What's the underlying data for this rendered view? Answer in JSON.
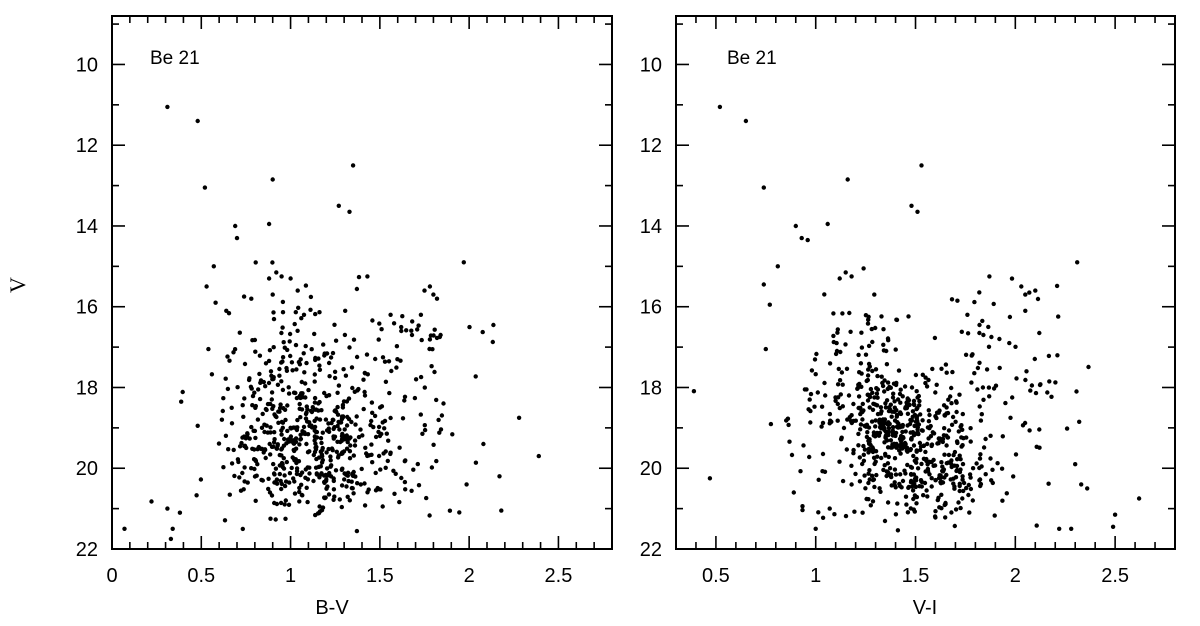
{
  "chart_data": [
    {
      "type": "scatter",
      "panel_label": "Be 21",
      "xlabel": "B-V",
      "ylabel": "V",
      "xlim": [
        0,
        2.8
      ],
      "ylim": [
        22,
        8.8
      ],
      "y_inverted": true,
      "x_major_ticks": [
        0,
        0.5,
        1,
        1.5,
        2,
        2.5
      ],
      "x_tick_labels": [
        "0",
        "0.5",
        "1",
        "1.5",
        "2",
        "2.5"
      ],
      "y_major_ticks": [
        10,
        12,
        14,
        16,
        18,
        20,
        22
      ],
      "y_tick_labels": [
        "10",
        "12",
        "14",
        "16",
        "18",
        "20",
        "22"
      ],
      "x_minor_step": 0.1,
      "y_minor_step": 1,
      "grid": false,
      "points": [
        [
          0.31,
          11.05
        ],
        [
          0.48,
          11.4
        ],
        [
          0.52,
          13.05
        ],
        [
          0.9,
          12.85
        ],
        [
          1.35,
          12.5
        ],
        [
          1.27,
          13.5
        ],
        [
          1.33,
          13.65
        ],
        [
          0.88,
          13.95
        ],
        [
          0.69,
          14.0
        ],
        [
          0.7,
          14.3
        ],
        [
          1.97,
          14.9
        ],
        [
          0.57,
          15.0
        ],
        [
          0.53,
          15.5
        ],
        [
          0.58,
          15.9
        ],
        [
          0.64,
          16.1
        ],
        [
          0.54,
          17.05
        ],
        [
          0.48,
          18.95
        ],
        [
          0.31,
          21.0
        ],
        [
          0.38,
          21.1
        ],
        [
          0.34,
          21.5
        ],
        [
          0.33,
          21.75
        ],
        [
          0.07,
          21.5
        ],
        [
          2.08,
          19.4
        ],
        [
          2.17,
          20.2
        ],
        [
          2.18,
          21.05
        ],
        [
          2.28,
          18.75
        ],
        [
          2.39,
          19.7
        ],
        [
          1.43,
          15.25
        ],
        [
          1.56,
          16.2
        ],
        [
          1.62,
          16.6
        ],
        [
          1.68,
          16.7
        ],
        [
          1.75,
          15.6
        ],
        [
          1.78,
          15.5
        ],
        [
          1.8,
          15.7
        ],
        [
          1.82,
          15.8
        ],
        [
          1.73,
          16.2
        ],
        [
          1.84,
          16.7
        ],
        [
          0.88,
          15.3
        ],
        [
          0.92,
          15.15
        ],
        [
          0.95,
          15.25
        ],
        [
          1.0,
          15.3
        ],
        [
          1.04,
          15.6
        ],
        [
          0.9,
          15.7
        ],
        [
          0.78,
          15.8
        ],
        [
          0.74,
          15.75
        ]
      ],
      "clusters": [
        {
          "cx": 1.08,
          "cy": 19.2,
          "sx": 0.2,
          "sy": 0.75,
          "n": 300
        },
        {
          "cx": 1.05,
          "cy": 17.5,
          "sx": 0.17,
          "sy": 1.0,
          "n": 90
        },
        {
          "cx": 1.4,
          "cy": 19.6,
          "sx": 0.25,
          "sy": 0.9,
          "n": 130
        },
        {
          "cx": 1.6,
          "cy": 17.2,
          "sx": 0.25,
          "sy": 0.8,
          "n": 60
        },
        {
          "cx": 0.8,
          "cy": 18.8,
          "sx": 0.16,
          "sy": 1.3,
          "n": 60
        },
        {
          "cx": 1.1,
          "cy": 20.5,
          "sx": 0.3,
          "sy": 0.35,
          "n": 60
        }
      ]
    },
    {
      "type": "scatter",
      "panel_label": "Be 21",
      "xlabel": "V-I",
      "ylabel": "",
      "xlim": [
        0.3,
        2.8
      ],
      "ylim": [
        22,
        8.8
      ],
      "y_inverted": true,
      "x_major_ticks": [
        0.5,
        1,
        1.5,
        2,
        2.5
      ],
      "x_tick_labels": [
        "0.5",
        "1",
        "1.5",
        "2",
        "2.5"
      ],
      "y_major_ticks": [
        10,
        12,
        14,
        16,
        18,
        20,
        22
      ],
      "y_tick_labels": [
        "10",
        "12",
        "14",
        "16",
        "18",
        "20",
        "22"
      ],
      "x_minor_step": 0.1,
      "y_minor_step": 1,
      "grid": false,
      "points": [
        [
          0.52,
          11.05
        ],
        [
          0.65,
          11.4
        ],
        [
          0.74,
          13.05
        ],
        [
          1.16,
          12.85
        ],
        [
          1.53,
          12.5
        ],
        [
          1.48,
          13.5
        ],
        [
          1.51,
          13.65
        ],
        [
          1.06,
          13.95
        ],
        [
          0.9,
          14.0
        ],
        [
          0.93,
          14.3
        ],
        [
          0.96,
          14.35
        ],
        [
          2.31,
          14.9
        ],
        [
          0.81,
          15.0
        ],
        [
          0.74,
          15.45
        ],
        [
          0.77,
          15.95
        ],
        [
          1.24,
          15.05
        ],
        [
          1.12,
          15.3
        ],
        [
          1.15,
          15.15
        ],
        [
          1.18,
          15.25
        ],
        [
          0.75,
          17.05
        ],
        [
          0.97,
          18.3
        ],
        [
          0.47,
          20.25
        ],
        [
          0.89,
          20.6
        ],
        [
          1.07,
          21.0
        ],
        [
          1.0,
          21.5
        ],
        [
          2.22,
          21.5
        ],
        [
          2.28,
          21.5
        ],
        [
          2.5,
          21.15
        ],
        [
          2.49,
          21.45
        ],
        [
          2.62,
          20.75
        ],
        [
          2.32,
          18.85
        ],
        [
          2.3,
          19.9
        ],
        [
          2.33,
          20.4
        ],
        [
          2.36,
          20.5
        ],
        [
          2.17,
          17.85
        ],
        [
          1.87,
          15.25
        ],
        [
          2.03,
          15.5
        ],
        [
          2.05,
          15.7
        ],
        [
          2.07,
          15.65
        ],
        [
          2.1,
          15.6
        ],
        [
          2.12,
          16.65
        ],
        [
          2.05,
          16.1
        ],
        [
          1.82,
          16.65
        ],
        [
          1.84,
          16.7
        ],
        [
          1.88,
          16.75
        ],
        [
          1.92,
          16.8
        ],
        [
          1.97,
          16.9
        ],
        [
          1.71,
          15.85
        ],
        [
          1.76,
          16.2
        ]
      ],
      "clusters": [
        {
          "cx": 1.42,
          "cy": 19.0,
          "sx": 0.13,
          "sy": 0.7,
          "n": 300
        },
        {
          "cx": 1.6,
          "cy": 20.1,
          "sx": 0.15,
          "sy": 0.35,
          "n": 100
        },
        {
          "cx": 1.25,
          "cy": 17.5,
          "sx": 0.17,
          "sy": 0.9,
          "n": 90
        },
        {
          "cx": 1.7,
          "cy": 19.2,
          "sx": 0.22,
          "sy": 0.9,
          "n": 100
        },
        {
          "cx": 1.95,
          "cy": 17.7,
          "sx": 0.18,
          "sy": 0.9,
          "n": 50
        },
        {
          "cx": 1.05,
          "cy": 19.0,
          "sx": 0.15,
          "sy": 1.0,
          "n": 50
        },
        {
          "cx": 1.55,
          "cy": 20.8,
          "sx": 0.25,
          "sy": 0.3,
          "n": 50
        }
      ]
    }
  ]
}
